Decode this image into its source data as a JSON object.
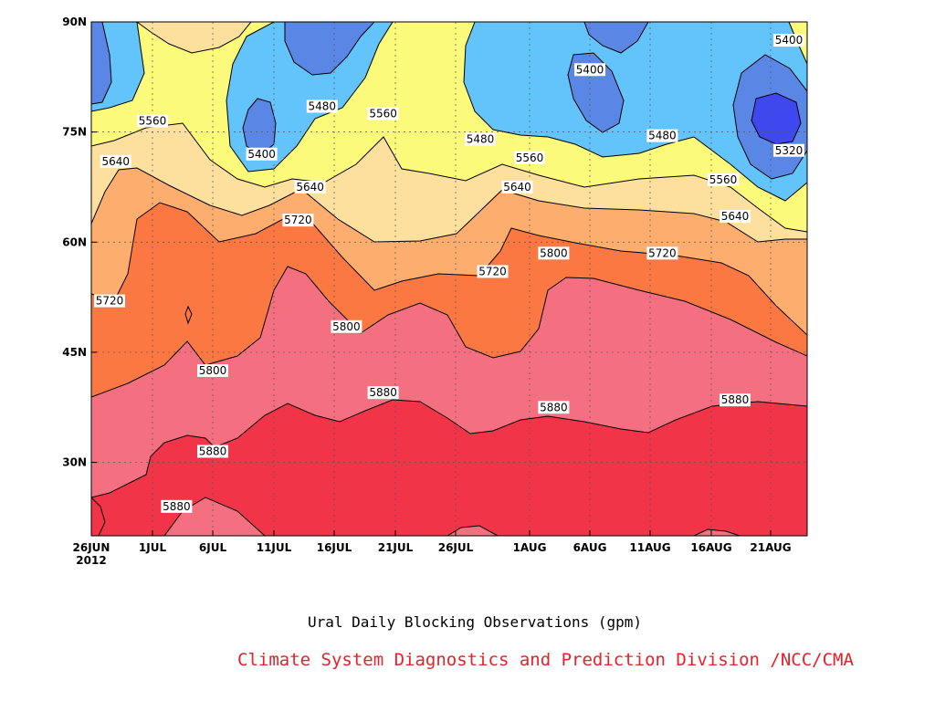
{
  "chart_data": {
    "type": "contour",
    "title": "Ural Daily Blocking Observations (gpm)",
    "credit": "Climate System Diagnostics and Prediction Division /NCC/CMA",
    "x_ticks": [
      "26JUN",
      "1JUL",
      "6JUL",
      "11JUL",
      "16JUL",
      "21JUL",
      "26JUL",
      "1AUG",
      "6AUG",
      "11AUG",
      "16AUG",
      "21AUG"
    ],
    "x_year": "2012",
    "y_ticks": [
      "30N",
      "45N",
      "60N",
      "75N",
      "90N"
    ],
    "y_range_deg_n": [
      20,
      90
    ],
    "grid": "dotted",
    "contour_levels": [
      5320,
      5400,
      5480,
      5560,
      5640,
      5720,
      5800,
      5880
    ],
    "fill_colors": {
      "below_5320": "#3f48ee",
      "5320_5400": "#5a87e6",
      "5400_5480": "#62c4fa",
      "5480_5560": "#fbfa7b",
      "5560_5640": "#fde09d",
      "5640_5720": "#fdae6e",
      "5720_5800": "#fb7843",
      "5800_5880": "#f47080",
      "above_5880": "#f23448"
    },
    "contour_labels": [
      {
        "value": "5560",
        "date": "1JUL",
        "lat": 76.5
      },
      {
        "value": "5480",
        "date": "15JUL",
        "lat": 78.5
      },
      {
        "value": "5560",
        "date": "20JUL",
        "lat": 77.5
      },
      {
        "value": "5400",
        "date": "10JUL",
        "lat": 72
      },
      {
        "value": "5400",
        "date": "6AUG",
        "lat": 83.5
      },
      {
        "value": "5400",
        "date": "23AUG",
        "lat": 87.5
      },
      {
        "value": "5480",
        "date": "28JUL",
        "lat": 74
      },
      {
        "value": "5480",
        "date": "12AUG",
        "lat": 74.5
      },
      {
        "value": "5320",
        "date": "23AUG",
        "lat": 72.5
      },
      {
        "value": "5640",
        "date": "28JUN",
        "lat": 71
      },
      {
        "value": "5560",
        "date": "1AUG",
        "lat": 71.5
      },
      {
        "value": "5640",
        "date": "14JUL",
        "lat": 67.5
      },
      {
        "value": "5640",
        "date": "31JUL",
        "lat": 67.5
      },
      {
        "value": "5560",
        "date": "17AUG",
        "lat": 68.5
      },
      {
        "value": "5720",
        "date": "13JUL",
        "lat": 63
      },
      {
        "value": "5640",
        "date": "18AUG",
        "lat": 63.5
      },
      {
        "value": "5720",
        "date": "12AUG",
        "lat": 58.5
      },
      {
        "value": "5800",
        "date": "3AUG",
        "lat": 58.5
      },
      {
        "value": "5720",
        "date": "29JUL",
        "lat": 56
      },
      {
        "value": "5720",
        "date": "26JUN",
        "lat": 52
      },
      {
        "value": "5800",
        "date": "17JUL",
        "lat": 48.5
      },
      {
        "value": "5800",
        "date": "6JUL",
        "lat": 42.5
      },
      {
        "value": "5880",
        "date": "20JUL",
        "lat": 39.5
      },
      {
        "value": "5880",
        "date": "3AUG",
        "lat": 37.5
      },
      {
        "value": "5880",
        "date": "18AUG",
        "lat": 38.5
      },
      {
        "value": "5880",
        "date": "6JUL",
        "lat": 31.5
      },
      {
        "value": "5880",
        "date": "3JUL",
        "lat": 24
      }
    ]
  }
}
